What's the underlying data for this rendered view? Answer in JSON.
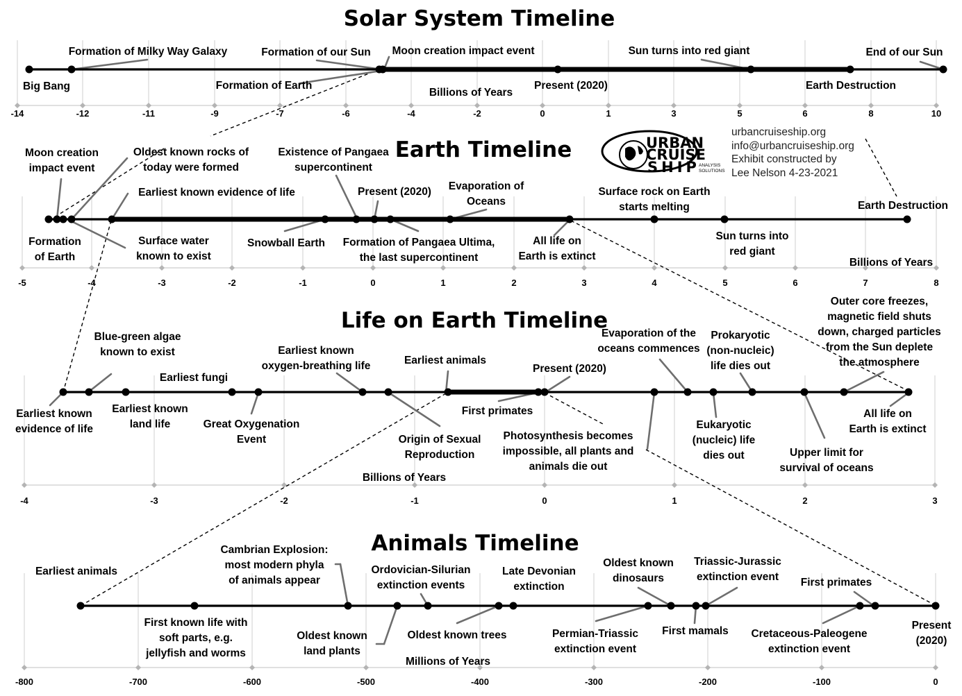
{
  "credits": {
    "site": "urbancruiseship.org",
    "email": "info@urbancruiseship.org",
    "line3": "Exhibit constructed by",
    "line4": "Lee Nelson 4-23-2021"
  },
  "logo": {
    "word1": "URBAN",
    "word2": "CRUISE",
    "word3": "SHIP",
    "sub1": "ANALYSIS",
    "sub2": "SOLUTIONS"
  },
  "timelines": [
    {
      "id": "solar",
      "title": "Solar System Timeline",
      "unit": "Billions of Years",
      "ticks": [
        "-14",
        "-12",
        "-11",
        "-9",
        "-7",
        "-6",
        "-4",
        "-2",
        "0",
        "1",
        "3",
        "5",
        "6",
        "8",
        "10"
      ],
      "labels": [
        {
          "lines": [
            "Formation of Milky Way Galaxy"
          ]
        },
        {
          "lines": [
            "Formation of our Sun"
          ]
        },
        {
          "lines": [
            "Moon creation impact event"
          ]
        },
        {
          "lines": [
            "Sun turns into red giant"
          ]
        },
        {
          "lines": [
            "End of our Sun"
          ]
        },
        {
          "lines": [
            "Big Bang"
          ]
        },
        {
          "lines": [
            "Formation of Earth"
          ]
        },
        {
          "lines": [
            "Present (2020)"
          ]
        },
        {
          "lines": [
            "Earth Destruction"
          ]
        }
      ]
    },
    {
      "id": "earth",
      "title": "Earth Timeline",
      "unit": "Billions of Years",
      "ticks": [
        "-5",
        "-4",
        "-3",
        "-2",
        "-1",
        "0",
        "1",
        "2",
        "3",
        "4",
        "5",
        "6",
        "7",
        "8"
      ],
      "labels": [
        {
          "lines": [
            "Moon creation",
            "impact event"
          ]
        },
        {
          "lines": [
            "Oldest known rocks of",
            "today were formed"
          ]
        },
        {
          "lines": [
            "Existence of Pangaea",
            "supercontinent"
          ]
        },
        {
          "lines": [
            "Earliest known evidence of life"
          ]
        },
        {
          "lines": [
            "Present (2020)"
          ]
        },
        {
          "lines": [
            "Evaporation of",
            "Oceans"
          ]
        },
        {
          "lines": [
            "Surface rock on Earth",
            "starts melting"
          ]
        },
        {
          "lines": [
            "Earth Destruction"
          ]
        },
        {
          "lines": [
            "Formation",
            "of Earth"
          ]
        },
        {
          "lines": [
            "Surface water",
            "known to exist"
          ]
        },
        {
          "lines": [
            "Snowball Earth"
          ]
        },
        {
          "lines": [
            "Formation of Pangaea Ultima,",
            "the last supercontinent"
          ]
        },
        {
          "lines": [
            "All life on",
            "Earth is extinct"
          ]
        },
        {
          "lines": [
            "Sun turns into",
            "red giant"
          ]
        }
      ]
    },
    {
      "id": "life",
      "title": "Life on Earth Timeline",
      "unit": "Billions of Years",
      "ticks": [
        "-4",
        "-3",
        "-2",
        "-1",
        "0",
        "1",
        "2",
        "3"
      ],
      "labels": [
        {
          "lines": [
            "Blue-green algae",
            "known to exist"
          ]
        },
        {
          "lines": [
            "Earliest fungi"
          ]
        },
        {
          "lines": [
            "Earliest known",
            "oxygen-breathing life"
          ]
        },
        {
          "lines": [
            "Earliest animals"
          ]
        },
        {
          "lines": [
            "Present (2020)"
          ]
        },
        {
          "lines": [
            "Evaporation of the",
            "oceans commences"
          ]
        },
        {
          "lines": [
            "Prokaryotic",
            "(non-nucleic)",
            "life dies out"
          ]
        },
        {
          "lines": [
            "Outer core freezes,",
            "magnetic field shuts",
            "down, charged particles",
            "from the Sun deplete",
            "the atmosphere"
          ]
        },
        {
          "lines": [
            "Earliest known",
            "evidence of life"
          ]
        },
        {
          "lines": [
            "Earliest known",
            "land life"
          ]
        },
        {
          "lines": [
            "Great Oxygenation",
            "Event"
          ]
        },
        {
          "lines": [
            "Origin of Sexual",
            "Reproduction"
          ]
        },
        {
          "lines": [
            "First primates"
          ]
        },
        {
          "lines": [
            "Photosynthesis becomes",
            "impossible, all plants and",
            "animals die out"
          ]
        },
        {
          "lines": [
            "Eukaryotic",
            "(nucleic) life",
            "dies out"
          ]
        },
        {
          "lines": [
            "Upper limit for",
            "survival of oceans"
          ]
        },
        {
          "lines": [
            "All life on",
            "Earth is extinct"
          ]
        }
      ]
    },
    {
      "id": "animals",
      "title": "Animals Timeline",
      "unit": "Millions of Years",
      "ticks": [
        "-800",
        "-700",
        "-600",
        "-500",
        "-400",
        "-300",
        "-200",
        "-100",
        "0"
      ],
      "labels": [
        {
          "lines": [
            "Earliest animals"
          ]
        },
        {
          "lines": [
            "Cambrian Explosion:",
            "most modern phyla",
            "of animals appear"
          ]
        },
        {
          "lines": [
            "Ordovician-Silurian",
            "extinction events"
          ]
        },
        {
          "lines": [
            "Late Devonian",
            "extinction"
          ]
        },
        {
          "lines": [
            "Oldest known",
            "dinosaurs"
          ]
        },
        {
          "lines": [
            "Triassic-Jurassic",
            "extinction event"
          ]
        },
        {
          "lines": [
            "First primates"
          ]
        },
        {
          "lines": [
            "First known life with",
            "soft parts, e.g.",
            "jellyfish and worms"
          ]
        },
        {
          "lines": [
            "Oldest known",
            "land plants"
          ]
        },
        {
          "lines": [
            "Oldest known trees"
          ]
        },
        {
          "lines": [
            "Permian-Triassic",
            "extinction event"
          ]
        },
        {
          "lines": [
            "First mamals"
          ]
        },
        {
          "lines": [
            "Cretaceous-Paleogene",
            "extinction event"
          ]
        },
        {
          "lines": [
            "Present",
            "(2020)"
          ]
        }
      ]
    }
  ]
}
